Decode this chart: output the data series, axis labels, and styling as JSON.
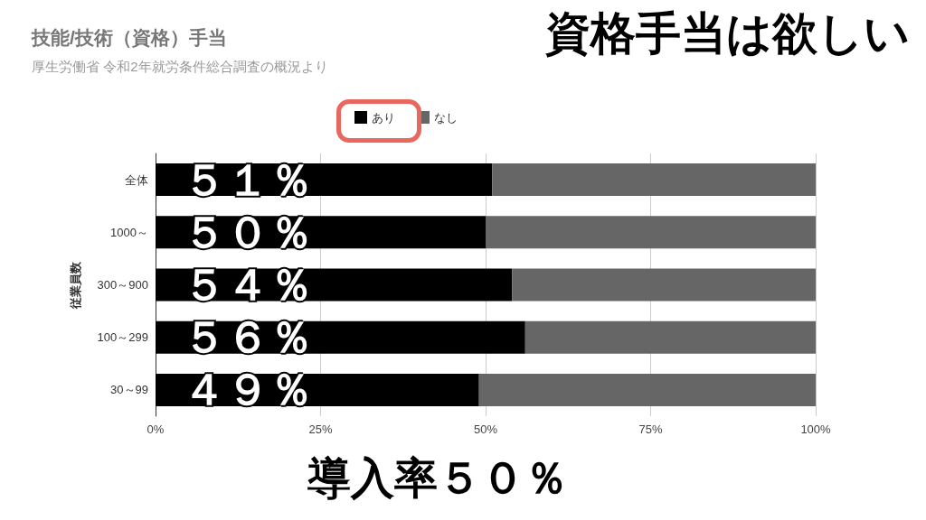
{
  "chart_data": {
    "type": "bar",
    "orientation": "horizontal",
    "stacked": true,
    "title": "技能/技術（資格）手当",
    "subtitle": "厚生労働省 令和2年就労条件総合調査の概況より",
    "ylabel": "従業員数",
    "categories": [
      "全体",
      "1000～",
      "300～900",
      "100～299",
      "30～99"
    ],
    "series": [
      {
        "name": "あり",
        "color": "#000000",
        "values": [
          51,
          50,
          54,
          56,
          49
        ],
        "value_labels": [
          "５１％",
          "５０％",
          "５４％",
          "５６％",
          "４９％"
        ]
      },
      {
        "name": "なし",
        "color": "#666666",
        "values": [
          49,
          50,
          46,
          44,
          51
        ]
      }
    ],
    "xlim": [
      0,
      100
    ],
    "xticks": [
      {
        "value": 0,
        "label": "0%"
      },
      {
        "value": 25,
        "label": "25%"
      },
      {
        "value": 50,
        "label": "50%"
      },
      {
        "value": 75,
        "label": "75%"
      },
      {
        "value": 100,
        "label": "100%"
      }
    ],
    "grid": "x",
    "legend": "top",
    "annotations": [
      "資格手当は欲しい",
      "導入率５０％"
    ]
  }
}
